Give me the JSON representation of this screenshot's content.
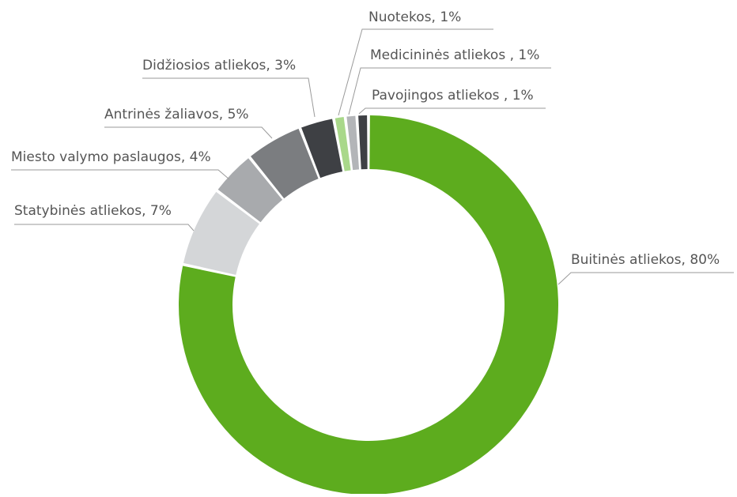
{
  "chart_data": {
    "type": "pie",
    "title": "",
    "slices": [
      {
        "label": "Buitinės atliekos, 80%",
        "value": 80,
        "color": "#5dac1e"
      },
      {
        "label": "Statybinės atliekos, 7%",
        "value": 7,
        "color": "#d4d6d8"
      },
      {
        "label": "Miesto valymo paslaugos, 4%",
        "value": 4,
        "color": "#a8aaad"
      },
      {
        "label": "Antrinės žaliavos, 5%",
        "value": 5,
        "color": "#7b7d80"
      },
      {
        "label": "Didžiosios atliekos, 3%",
        "value": 3,
        "color": "#3e4044"
      },
      {
        "label": "Nuotekos, 1%",
        "value": 1,
        "color": "#a9d88a"
      },
      {
        "label": "Medicininės atliekos , 1%",
        "value": 1,
        "color": "#b3b5b8"
      },
      {
        "label": "Pavojingos atliekos , 1%",
        "value": 1,
        "color": "#3e4044"
      }
    ],
    "legend": "none"
  }
}
